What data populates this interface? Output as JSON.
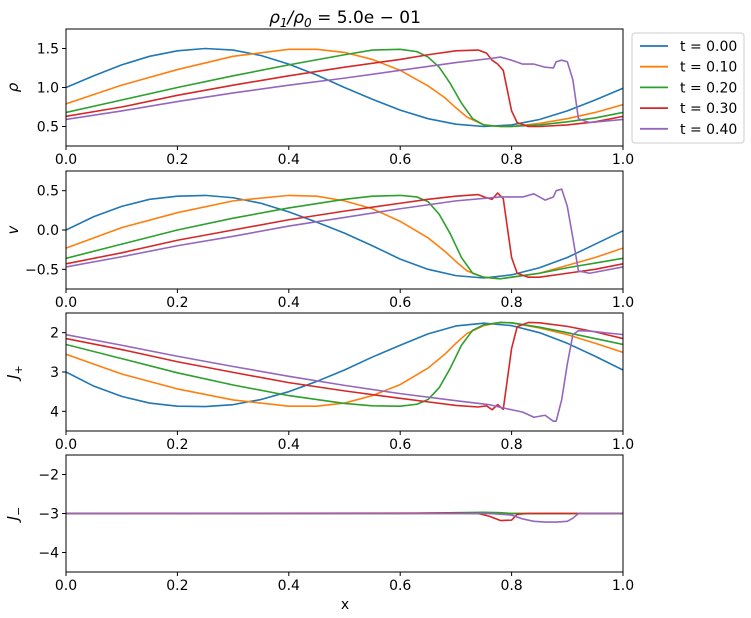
{
  "figure": {
    "title_parts": [
      "ρ",
      "1",
      "/ρ",
      "0",
      " = 5.0e − 01"
    ],
    "xlabel": "x"
  },
  "legend": {
    "entries": [
      {
        "label": "t = 0.00",
        "color": "#1f77b4"
      },
      {
        "label": "t = 0.10",
        "color": "#ff7f0e"
      },
      {
        "label": "t = 0.20",
        "color": "#2ca02c"
      },
      {
        "label": "t = 0.30",
        "color": "#d62728"
      },
      {
        "label": "t = 0.40",
        "color": "#9467bd"
      }
    ]
  },
  "chart_data": [
    {
      "type": "line",
      "ylabel_parts": [
        "ρ"
      ],
      "xlim": [
        0,
        1
      ],
      "ylim": [
        0.25,
        1.75
      ],
      "yticks": [
        0.5,
        1.0,
        1.5
      ],
      "ytick_labels": [
        "0.5",
        "1.0",
        "1.5"
      ],
      "xticks": [
        0,
        0.2,
        0.4,
        0.6,
        0.8,
        1.0
      ],
      "xtick_labels": [
        "0.0",
        "0.2",
        "0.4",
        "0.6",
        "0.8",
        "1.0"
      ],
      "series": [
        {
          "name": "t = 0.00",
          "color": "#1f77b4",
          "x": [
            0,
            0.05,
            0.1,
            0.15,
            0.2,
            0.25,
            0.3,
            0.35,
            0.4,
            0.45,
            0.5,
            0.55,
            0.6,
            0.65,
            0.7,
            0.75,
            0.8,
            0.85,
            0.9,
            0.95,
            1.0
          ],
          "y": [
            1.0,
            1.15,
            1.29,
            1.4,
            1.47,
            1.5,
            1.48,
            1.41,
            1.3,
            1.16,
            1.0,
            0.85,
            0.71,
            0.6,
            0.53,
            0.5,
            0.52,
            0.59,
            0.7,
            0.84,
            0.99
          ]
        },
        {
          "name": "t = 0.10",
          "color": "#ff7f0e",
          "x": [
            0,
            0.1,
            0.2,
            0.3,
            0.4,
            0.45,
            0.5,
            0.55,
            0.6,
            0.65,
            0.68,
            0.7,
            0.72,
            0.75,
            0.78,
            0.8,
            0.85,
            0.9,
            0.95,
            1.0
          ],
          "y": [
            0.79,
            1.03,
            1.23,
            1.4,
            1.49,
            1.49,
            1.45,
            1.36,
            1.22,
            1.02,
            0.87,
            0.74,
            0.62,
            0.52,
            0.5,
            0.5,
            0.54,
            0.6,
            0.68,
            0.78
          ]
        },
        {
          "name": "t = 0.20",
          "color": "#2ca02c",
          "x": [
            0,
            0.1,
            0.2,
            0.3,
            0.4,
            0.5,
            0.55,
            0.6,
            0.63,
            0.65,
            0.67,
            0.69,
            0.71,
            0.73,
            0.75,
            0.78,
            0.8,
            0.85,
            0.9,
            0.95,
            1.0
          ],
          "y": [
            0.68,
            0.84,
            1.0,
            1.15,
            1.29,
            1.42,
            1.48,
            1.49,
            1.46,
            1.39,
            1.26,
            1.05,
            0.8,
            0.6,
            0.52,
            0.5,
            0.5,
            0.52,
            0.56,
            0.61,
            0.68
          ]
        },
        {
          "name": "t = 0.30",
          "color": "#d62728",
          "x": [
            0,
            0.1,
            0.2,
            0.3,
            0.4,
            0.5,
            0.6,
            0.65,
            0.7,
            0.74,
            0.755,
            0.765,
            0.775,
            0.785,
            0.8,
            0.81,
            0.83,
            0.85,
            0.9,
            0.95,
            1.0
          ],
          "y": [
            0.63,
            0.75,
            0.9,
            1.03,
            1.15,
            1.26,
            1.36,
            1.42,
            1.47,
            1.48,
            1.44,
            1.35,
            1.3,
            1.22,
            0.7,
            0.55,
            0.5,
            0.5,
            0.52,
            0.56,
            0.63
          ]
        },
        {
          "name": "t = 0.40",
          "color": "#9467bd",
          "x": [
            0,
            0.1,
            0.2,
            0.3,
            0.4,
            0.5,
            0.6,
            0.7,
            0.76,
            0.78,
            0.8,
            0.82,
            0.84,
            0.86,
            0.875,
            0.88,
            0.89,
            0.9,
            0.91,
            0.92,
            0.94,
            1.0
          ],
          "y": [
            0.59,
            0.7,
            0.82,
            0.93,
            1.03,
            1.12,
            1.22,
            1.32,
            1.37,
            1.39,
            1.35,
            1.3,
            1.3,
            1.26,
            1.25,
            1.33,
            1.35,
            1.33,
            1.1,
            0.6,
            0.55,
            0.59
          ]
        }
      ]
    },
    {
      "type": "line",
      "ylabel_parts": [
        "v"
      ],
      "xlim": [
        0,
        1
      ],
      "ylim": [
        -0.75,
        0.75
      ],
      "yticks": [
        -0.5,
        0.0,
        0.5
      ],
      "ytick_labels": [
        "−0.5",
        "0.0",
        "0.5"
      ],
      "xticks": [
        0,
        0.2,
        0.4,
        0.6,
        0.8,
        1.0
      ],
      "xtick_labels": [
        "0.0",
        "0.2",
        "0.4",
        "0.6",
        "0.8",
        "1.0"
      ],
      "series": [
        {
          "name": "t = 0.00",
          "color": "#1f77b4",
          "x": [
            0,
            0.05,
            0.1,
            0.15,
            0.2,
            0.25,
            0.3,
            0.35,
            0.4,
            0.45,
            0.5,
            0.55,
            0.6,
            0.65,
            0.7,
            0.75,
            0.8,
            0.85,
            0.9,
            0.95,
            1.0
          ],
          "y": [
            0.0,
            0.17,
            0.3,
            0.39,
            0.43,
            0.44,
            0.41,
            0.34,
            0.23,
            0.1,
            -0.04,
            -0.2,
            -0.37,
            -0.5,
            -0.58,
            -0.61,
            -0.57,
            -0.48,
            -0.35,
            -0.18,
            -0.01
          ]
        },
        {
          "name": "t = 0.10",
          "color": "#ff7f0e",
          "x": [
            0,
            0.1,
            0.2,
            0.3,
            0.4,
            0.45,
            0.5,
            0.55,
            0.6,
            0.65,
            0.68,
            0.7,
            0.72,
            0.75,
            0.78,
            0.8,
            0.85,
            0.9,
            0.95,
            1.0
          ],
          "y": [
            -0.23,
            0.03,
            0.22,
            0.37,
            0.44,
            0.43,
            0.37,
            0.27,
            0.11,
            -0.1,
            -0.27,
            -0.4,
            -0.52,
            -0.6,
            -0.62,
            -0.6,
            -0.55,
            -0.45,
            -0.35,
            -0.23
          ]
        },
        {
          "name": "t = 0.20",
          "color": "#2ca02c",
          "x": [
            0,
            0.1,
            0.2,
            0.3,
            0.4,
            0.5,
            0.55,
            0.6,
            0.63,
            0.65,
            0.67,
            0.69,
            0.71,
            0.73,
            0.75,
            0.78,
            0.8,
            0.85,
            0.9,
            0.95,
            1.0
          ],
          "y": [
            -0.36,
            -0.18,
            0.0,
            0.15,
            0.28,
            0.39,
            0.43,
            0.44,
            0.42,
            0.36,
            0.2,
            -0.05,
            -0.35,
            -0.55,
            -0.6,
            -0.62,
            -0.6,
            -0.55,
            -0.48,
            -0.42,
            -0.36
          ]
        },
        {
          "name": "t = 0.30",
          "color": "#d62728",
          "x": [
            0,
            0.1,
            0.2,
            0.3,
            0.4,
            0.5,
            0.6,
            0.65,
            0.7,
            0.74,
            0.755,
            0.765,
            0.775,
            0.785,
            0.8,
            0.81,
            0.83,
            0.85,
            0.9,
            0.95,
            1.0
          ],
          "y": [
            -0.43,
            -0.29,
            -0.13,
            0.0,
            0.13,
            0.24,
            0.34,
            0.39,
            0.43,
            0.45,
            0.41,
            0.39,
            0.47,
            0.4,
            -0.35,
            -0.55,
            -0.6,
            -0.6,
            -0.55,
            -0.5,
            -0.43
          ]
        },
        {
          "name": "t = 0.40",
          "color": "#9467bd",
          "x": [
            0,
            0.1,
            0.2,
            0.3,
            0.4,
            0.5,
            0.6,
            0.7,
            0.78,
            0.8,
            0.82,
            0.84,
            0.86,
            0.875,
            0.88,
            0.89,
            0.9,
            0.91,
            0.92,
            0.94,
            1.0
          ],
          "y": [
            -0.47,
            -0.34,
            -0.2,
            -0.08,
            0.05,
            0.16,
            0.27,
            0.37,
            0.42,
            0.42,
            0.42,
            0.46,
            0.38,
            0.42,
            0.5,
            0.52,
            0.3,
            -0.1,
            -0.52,
            -0.55,
            -0.47
          ]
        }
      ]
    },
    {
      "type": "line",
      "ylabel_parts": [
        "J",
        "+"
      ],
      "xlim": [
        0,
        1
      ],
      "ylim": [
        4.5,
        1.5
      ],
      "yticks": [
        2,
        3,
        4
      ],
      "ytick_labels": [
        "2",
        "3",
        "4"
      ],
      "xticks": [
        0,
        0.2,
        0.4,
        0.6,
        0.8,
        1.0
      ],
      "xtick_labels": [
        "0.0",
        "0.2",
        "0.4",
        "0.6",
        "0.8",
        "1.0"
      ],
      "series": [
        {
          "name": "t = 0.00",
          "color": "#1f77b4",
          "x": [
            0,
            0.05,
            0.1,
            0.15,
            0.2,
            0.25,
            0.3,
            0.35,
            0.4,
            0.45,
            0.5,
            0.55,
            0.6,
            0.65,
            0.7,
            0.75,
            0.8,
            0.85,
            0.9,
            0.95,
            1.0
          ],
          "y": [
            3.0,
            3.36,
            3.62,
            3.79,
            3.87,
            3.88,
            3.83,
            3.7,
            3.5,
            3.24,
            2.95,
            2.62,
            2.32,
            2.03,
            1.83,
            1.76,
            1.82,
            2.0,
            2.27,
            2.6,
            2.95
          ]
        },
        {
          "name": "t = 0.10",
          "color": "#ff7f0e",
          "x": [
            0,
            0.1,
            0.2,
            0.3,
            0.4,
            0.45,
            0.5,
            0.55,
            0.6,
            0.65,
            0.68,
            0.7,
            0.72,
            0.75,
            0.78,
            0.8,
            0.85,
            0.9,
            0.95,
            1.0
          ],
          "y": [
            2.55,
            3.05,
            3.43,
            3.71,
            3.87,
            3.87,
            3.79,
            3.6,
            3.32,
            2.9,
            2.55,
            2.27,
            2.02,
            1.82,
            1.74,
            1.75,
            1.88,
            2.05,
            2.27,
            2.5
          ]
        },
        {
          "name": "t = 0.20",
          "color": "#2ca02c",
          "x": [
            0,
            0.1,
            0.2,
            0.3,
            0.4,
            0.5,
            0.55,
            0.6,
            0.63,
            0.65,
            0.67,
            0.69,
            0.71,
            0.73,
            0.75,
            0.78,
            0.8,
            0.85,
            0.9,
            0.95,
            1.0
          ],
          "y": [
            2.3,
            2.66,
            3.02,
            3.33,
            3.6,
            3.8,
            3.86,
            3.87,
            3.82,
            3.7,
            3.4,
            2.9,
            2.32,
            1.94,
            1.8,
            1.74,
            1.75,
            1.86,
            2.0,
            2.15,
            2.3
          ]
        },
        {
          "name": "t = 0.30",
          "color": "#d62728",
          "x": [
            0,
            0.1,
            0.2,
            0.3,
            0.4,
            0.5,
            0.6,
            0.65,
            0.7,
            0.74,
            0.755,
            0.765,
            0.775,
            0.785,
            0.8,
            0.81,
            0.83,
            0.85,
            0.9,
            0.95,
            1.0
          ],
          "y": [
            2.15,
            2.43,
            2.74,
            3.01,
            3.27,
            3.48,
            3.67,
            3.76,
            3.85,
            3.89,
            3.86,
            3.96,
            3.83,
            3.95,
            2.4,
            1.85,
            1.74,
            1.75,
            1.84,
            1.98,
            2.15
          ]
        },
        {
          "name": "t = 0.40",
          "color": "#9467bd",
          "x": [
            0,
            0.1,
            0.2,
            0.3,
            0.4,
            0.5,
            0.6,
            0.7,
            0.76,
            0.78,
            0.8,
            0.82,
            0.84,
            0.86,
            0.875,
            0.88,
            0.89,
            0.9,
            0.91,
            0.92,
            0.94,
            1.0
          ],
          "y": [
            2.05,
            2.32,
            2.6,
            2.86,
            3.11,
            3.34,
            3.55,
            3.73,
            3.83,
            3.9,
            3.96,
            4.02,
            4.15,
            4.1,
            4.25,
            4.25,
            3.7,
            2.8,
            2.05,
            1.95,
            1.96,
            2.05
          ]
        }
      ]
    },
    {
      "type": "line",
      "ylabel_parts": [
        "J",
        "−"
      ],
      "xlim": [
        0,
        1
      ],
      "ylim": [
        -4.5,
        -1.5
      ],
      "yticks": [
        -4,
        -3,
        -2
      ],
      "ytick_labels": [
        "−4",
        "−3",
        "−2"
      ],
      "xticks": [
        0,
        0.2,
        0.4,
        0.6,
        0.8,
        1.0
      ],
      "xtick_labels": [
        "0.0",
        "0.2",
        "0.4",
        "0.6",
        "0.8",
        "1.0"
      ],
      "series": [
        {
          "name": "t = 0.00",
          "color": "#1f77b4",
          "x": [
            0,
            1.0
          ],
          "y": [
            -3.0,
            -3.0
          ]
        },
        {
          "name": "t = 0.10",
          "color": "#ff7f0e",
          "x": [
            0,
            0.6,
            0.7,
            0.75,
            0.8,
            1.0
          ],
          "y": [
            -3.0,
            -3.0,
            -2.99,
            -2.99,
            -3.0,
            -3.0
          ]
        },
        {
          "name": "t = 0.20",
          "color": "#2ca02c",
          "x": [
            0,
            0.6,
            0.7,
            0.75,
            0.78,
            0.8,
            1.0
          ],
          "y": [
            -3.0,
            -3.0,
            -2.98,
            -2.97,
            -2.98,
            -3.0,
            -3.0
          ]
        },
        {
          "name": "t = 0.30",
          "color": "#d62728",
          "x": [
            0,
            0.7,
            0.74,
            0.76,
            0.78,
            0.8,
            0.81,
            0.83,
            1.0
          ],
          "y": [
            -3.0,
            -2.99,
            -3.0,
            -3.07,
            -3.18,
            -3.17,
            -3.02,
            -3.0,
            -3.0
          ]
        },
        {
          "name": "t = 0.40",
          "color": "#9467bd",
          "x": [
            0,
            0.76,
            0.8,
            0.82,
            0.84,
            0.86,
            0.88,
            0.9,
            0.91,
            0.92,
            1.0
          ],
          "y": [
            -3.0,
            -3.0,
            -3.04,
            -3.14,
            -3.2,
            -3.22,
            -3.22,
            -3.2,
            -3.12,
            -3.0,
            -3.0
          ]
        }
      ]
    }
  ]
}
